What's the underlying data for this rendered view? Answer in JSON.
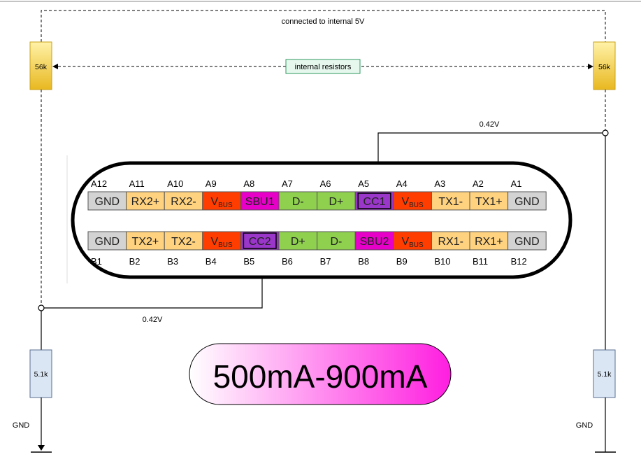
{
  "top_note": "connected to internal 5V",
  "internal_resistors_label": "internal resistors",
  "pullups": {
    "left_value": "56k",
    "right_value": "56k"
  },
  "pulldowns": {
    "left_value": "5.1k",
    "right_value": "5.1k"
  },
  "voltages": {
    "right": "0.42V",
    "left": "0.42V"
  },
  "ground": {
    "left": "GND",
    "right": "GND"
  },
  "current_range": "500mA-900mA",
  "colors": {
    "gnd": "#d3d3d3",
    "hs_pair": "#ffd27f",
    "vbus": "#ff3d00",
    "sbu": "#e600c8",
    "data": "#8fd14f",
    "cc": "#9a36c9",
    "pullup_top": "#fff2a8",
    "pullup_bottom": "#e8b820",
    "pulldown": "#dbe6f5",
    "label_box": "#e6f7ee",
    "label_box_border": "#2e9a5e",
    "gradient_start": "#ffffff",
    "gradient_end": "#ff1ee0"
  },
  "row_a": {
    "pin_ids": [
      "A12",
      "A11",
      "A10",
      "A9",
      "A8",
      "A7",
      "A6",
      "A5",
      "A4",
      "A3",
      "A2",
      "A1"
    ],
    "signals": [
      {
        "main": "GND",
        "sub": "",
        "type": "gnd"
      },
      {
        "main": "RX2+",
        "sub": "",
        "type": "hs_pair"
      },
      {
        "main": "RX2-",
        "sub": "",
        "type": "hs_pair"
      },
      {
        "main": "V",
        "sub": "BUS",
        "type": "vbus"
      },
      {
        "main": "SBU1",
        "sub": "",
        "type": "sbu"
      },
      {
        "main": "D-",
        "sub": "",
        "type": "data"
      },
      {
        "main": "D+",
        "sub": "",
        "type": "data"
      },
      {
        "main": "CC1",
        "sub": "",
        "type": "cc"
      },
      {
        "main": "V",
        "sub": "BUS",
        "type": "vbus"
      },
      {
        "main": "TX1-",
        "sub": "",
        "type": "hs_pair"
      },
      {
        "main": "TX1+",
        "sub": "",
        "type": "hs_pair"
      },
      {
        "main": "GND",
        "sub": "",
        "type": "gnd"
      }
    ]
  },
  "row_b": {
    "pin_ids": [
      "B1",
      "B2",
      "B3",
      "B4",
      "B5",
      "B6",
      "B7",
      "B8",
      "B9",
      "B10",
      "B11",
      "B12"
    ],
    "signals": [
      {
        "main": "GND",
        "sub": "",
        "type": "gnd"
      },
      {
        "main": "TX2+",
        "sub": "",
        "type": "hs_pair"
      },
      {
        "main": "TX2-",
        "sub": "",
        "type": "hs_pair"
      },
      {
        "main": "V",
        "sub": "BUS",
        "type": "vbus"
      },
      {
        "main": "CC2",
        "sub": "",
        "type": "cc"
      },
      {
        "main": "D+",
        "sub": "",
        "type": "data"
      },
      {
        "main": "D-",
        "sub": "",
        "type": "data"
      },
      {
        "main": "SBU2",
        "sub": "",
        "type": "sbu"
      },
      {
        "main": "V",
        "sub": "BUS",
        "type": "vbus"
      },
      {
        "main": "RX1-",
        "sub": "",
        "type": "hs_pair"
      },
      {
        "main": "RX1+",
        "sub": "",
        "type": "hs_pair"
      },
      {
        "main": "GND",
        "sub": "",
        "type": "gnd"
      }
    ]
  }
}
